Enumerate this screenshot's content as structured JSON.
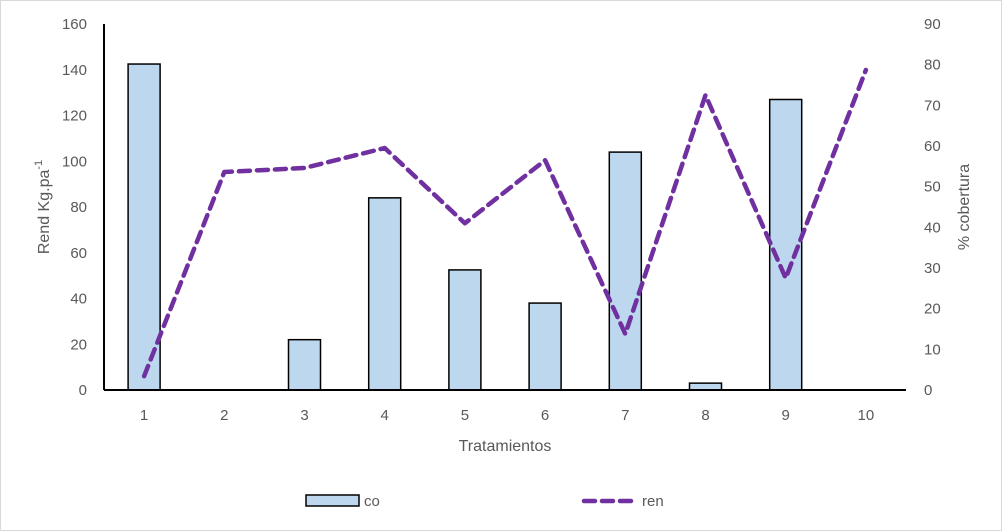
{
  "chart_data": {
    "type": "bar+line",
    "title": "",
    "xlabel": "Tratamientos",
    "ylabel": "Rend Kg.pa",
    "ylabel_superscript": "-1",
    "y2label": "% cobertura",
    "categories": [
      "1",
      "2",
      "3",
      "4",
      "5",
      "6",
      "7",
      "8",
      "9",
      "10"
    ],
    "ylim": [
      0,
      160
    ],
    "y_ticks": [
      0,
      20,
      40,
      60,
      80,
      100,
      120,
      140,
      160
    ],
    "y2lim": [
      0,
      90
    ],
    "y2_ticks": [
      0,
      10,
      20,
      30,
      40,
      50,
      60,
      70,
      80,
      90
    ],
    "grid": false,
    "legend_position": "bottom",
    "series": [
      {
        "name": "co",
        "type": "bar",
        "axis": "left",
        "color": "#BDD7EE",
        "edge": "#000000",
        "values": [
          142.5,
          0,
          22,
          84,
          52.5,
          38,
          104,
          3,
          127,
          0
        ]
      },
      {
        "name": "ren",
        "type": "line",
        "axis": "right",
        "color": "#7030A0",
        "style": "dashed",
        "values": [
          3.4,
          53.6,
          54.6,
          59.5,
          41,
          56.5,
          13.8,
          72.5,
          27.5,
          78.7
        ]
      }
    ]
  }
}
